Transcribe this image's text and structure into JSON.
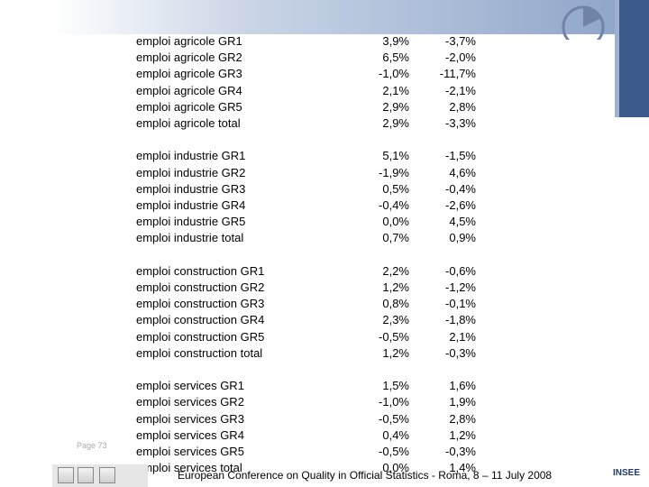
{
  "table": {
    "groups": [
      {
        "rows": [
          [
            "emploi agricole GR1",
            "3,9%",
            "-3,7%"
          ],
          [
            "emploi agricole GR2",
            "6,5%",
            "-2,0%"
          ],
          [
            "emploi agricole GR3",
            "-1,0%",
            "-11,7%"
          ],
          [
            "emploi agricole GR4",
            "2,1%",
            "-2,1%"
          ],
          [
            "emploi agricole GR5",
            "2,9%",
            "2,8%"
          ],
          [
            "emploi agricole total",
            "2,9%",
            "-3,3%"
          ]
        ]
      },
      {
        "rows": [
          [
            "emploi industrie GR1",
            "5,1%",
            "-1,5%"
          ],
          [
            "emploi industrie GR2",
            "-1,9%",
            "4,6%"
          ],
          [
            "emploi industrie GR3",
            "0,5%",
            "-0,4%"
          ],
          [
            "emploi industrie GR4",
            "-0,4%",
            "-2,6%"
          ],
          [
            "emploi industrie GR5",
            "0,0%",
            "4,5%"
          ],
          [
            "emploi industrie total",
            "0,7%",
            "0,9%"
          ]
        ]
      },
      {
        "rows": [
          [
            "emploi construction GR1",
            "2,2%",
            "-0,6%"
          ],
          [
            "emploi construction GR2",
            "1,2%",
            "-1,2%"
          ],
          [
            "emploi construction GR3",
            "0,8%",
            "-0,1%"
          ],
          [
            "emploi construction GR4",
            "2,3%",
            "-1,8%"
          ],
          [
            "emploi construction GR5",
            "-0,5%",
            "2,1%"
          ],
          [
            "emploi construction total",
            "1,2%",
            "-0,3%"
          ]
        ]
      },
      {
        "rows": [
          [
            "emploi services GR1",
            "1,5%",
            "1,6%"
          ],
          [
            "emploi services GR2",
            "-1,0%",
            "1,9%"
          ],
          [
            "emploi services GR3",
            "-0,5%",
            "2,8%"
          ],
          [
            "emploi services GR4",
            "0,4%",
            "1,2%"
          ],
          [
            "emploi services GR5",
            "-0,5%",
            "-0,3%"
          ],
          [
            "emploi services total",
            "0,0%",
            "1,4%"
          ]
        ]
      }
    ]
  },
  "footer": {
    "page": "Page 73",
    "conference": "European Conference on Quality in Official Statistics -  Roma, 8 – 11 July 2008",
    "logo": "INSEE"
  }
}
